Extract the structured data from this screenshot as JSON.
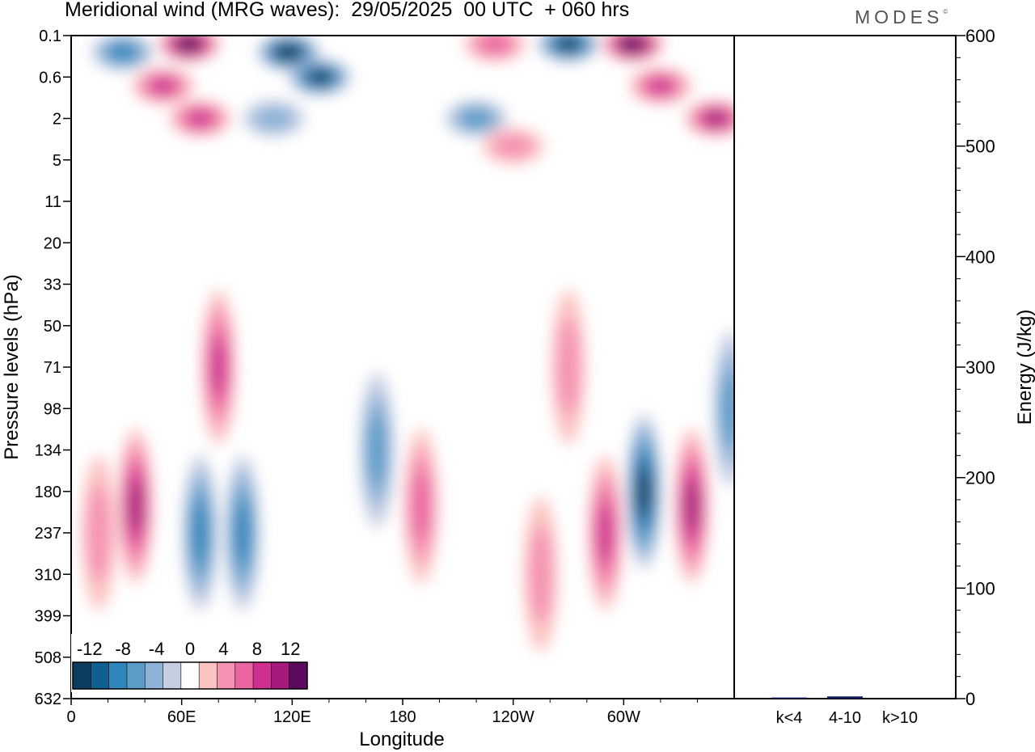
{
  "header": {
    "title": "Meridional wind (MRG waves):  29/05/2025  00 UTC  + 060 hrs",
    "brand": "MODES",
    "brand_mark": "©"
  },
  "chart_data": [
    {
      "type": "heatmap",
      "title": "Meridional wind (MRG waves):  29/05/2025  00 UTC  + 060 hrs",
      "xlabel": "Longitude",
      "ylabel": "Pressure levels (hPa)",
      "x_ticks": [
        "0",
        "60E",
        "120E",
        "180",
        "120W",
        "60W"
      ],
      "x_tick_degrees": [
        0,
        60,
        120,
        180,
        240,
        300
      ],
      "xlim": [
        0,
        360
      ],
      "y_ticks": [
        "0.1",
        "0.6",
        "2",
        "5",
        "11",
        "20",
        "33",
        "50",
        "71",
        "98",
        "134",
        "180",
        "237",
        "310",
        "399",
        "508",
        "632"
      ],
      "y_axis_inverted": true,
      "colorbar": {
        "labels": [
          "-12",
          "-8",
          "-4",
          "0",
          "4",
          "8",
          "12"
        ],
        "levels": [
          -14,
          -12,
          -10,
          -8,
          -6,
          -4,
          -2,
          2,
          4,
          6,
          8,
          10,
          12,
          14
        ],
        "colors": [
          "#0c3c5e",
          "#0f5f8f",
          "#2d86bc",
          "#5a9bc8",
          "#8db3d8",
          "#c5cde2",
          "#ffffff",
          "#fbc3c1",
          "#f593b2",
          "#ea66a2",
          "#cf2e93",
          "#a61a7e",
          "#5b0a5e"
        ],
        "placement": "bottom-left"
      },
      "features": [
        {
          "lon": 28,
          "level": "0.3",
          "value": -9
        },
        {
          "lon": 64,
          "level": "0.2",
          "value": 14
        },
        {
          "lon": 50,
          "level": "0.9",
          "value": 8
        },
        {
          "lon": 70,
          "level": "2",
          "value": 9
        },
        {
          "lon": 118,
          "level": "0.3",
          "value": -14
        },
        {
          "lon": 135,
          "level": "0.6",
          "value": -12
        },
        {
          "lon": 110,
          "level": "2",
          "value": -4
        },
        {
          "lon": 230,
          "level": "0.2",
          "value": 6
        },
        {
          "lon": 270,
          "level": "0.2",
          "value": -12
        },
        {
          "lon": 305,
          "level": "0.2",
          "value": 14
        },
        {
          "lon": 320,
          "level": "0.9",
          "value": 8
        },
        {
          "lon": 350,
          "level": "2",
          "value": 10
        },
        {
          "lon": 220,
          "level": "2",
          "value": -6
        },
        {
          "lon": 240,
          "level": "4",
          "value": 4
        },
        {
          "lon": 80,
          "level": "71",
          "value": 8
        },
        {
          "lon": 35,
          "level": "200",
          "value": 10
        },
        {
          "lon": 15,
          "level": "237",
          "value": 4
        },
        {
          "lon": 70,
          "level": "237",
          "value": -8
        },
        {
          "lon": 93,
          "level": "237",
          "value": -8
        },
        {
          "lon": 166,
          "level": "134",
          "value": -6
        },
        {
          "lon": 190,
          "level": "200",
          "value": 6
        },
        {
          "lon": 255,
          "level": "310",
          "value": 4
        },
        {
          "lon": 290,
          "level": "237",
          "value": 8
        },
        {
          "lon": 311,
          "level": "180",
          "value": -12
        },
        {
          "lon": 337,
          "level": "200",
          "value": 10
        },
        {
          "lon": 270,
          "level": "71",
          "value": 4
        },
        {
          "lon": 358,
          "level": "98",
          "value": -6
        }
      ]
    },
    {
      "type": "bar",
      "ylabel": "Energy (J/kg)",
      "categories": [
        "k<4",
        "4-10",
        "k>10"
      ],
      "values": [
        1,
        2,
        0
      ],
      "ylim": [
        0,
        600
      ],
      "y_ticks": [
        "0",
        "100",
        "200",
        "300",
        "400",
        "500",
        "600"
      ],
      "color": "#141b5c"
    }
  ]
}
